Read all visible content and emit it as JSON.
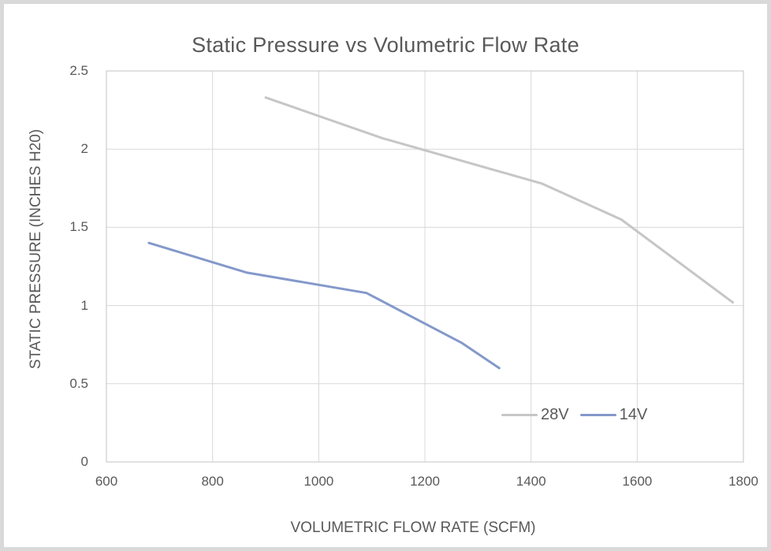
{
  "frame": {
    "border_color": "#d9d9d9",
    "background": "#ffffff"
  },
  "chart_data": {
    "type": "line",
    "title": "Static Pressure vs Volumetric Flow Rate",
    "xlabel": "VOLUMETRIC FLOW RATE (SCFM)",
    "ylabel": "STATIC PRESSURE (INCHES H20)",
    "xlim": [
      600,
      1800
    ],
    "ylim": [
      0,
      2.5
    ],
    "xticks": [
      600,
      800,
      1000,
      1200,
      1400,
      1600,
      1800
    ],
    "yticks": [
      0,
      0.5,
      1,
      1.5,
      2,
      2.5
    ],
    "grid": true,
    "legend_position": "inside-bottom-right",
    "text_color": "#595959",
    "gridline_color": "#d8d8d8",
    "plot_border_color": "#c3c3c3",
    "series": [
      {
        "name": "28V",
        "color": "#c6c6c6",
        "points": [
          [
            900,
            2.33
          ],
          [
            1120,
            2.07
          ],
          [
            1420,
            1.78
          ],
          [
            1570,
            1.55
          ],
          [
            1780,
            1.02
          ]
        ]
      },
      {
        "name": "14V",
        "color": "#8499ca",
        "points": [
          [
            680,
            1.4
          ],
          [
            865,
            1.21
          ],
          [
            1090,
            1.08
          ],
          [
            1270,
            0.76
          ],
          [
            1340,
            0.6
          ]
        ]
      }
    ]
  }
}
